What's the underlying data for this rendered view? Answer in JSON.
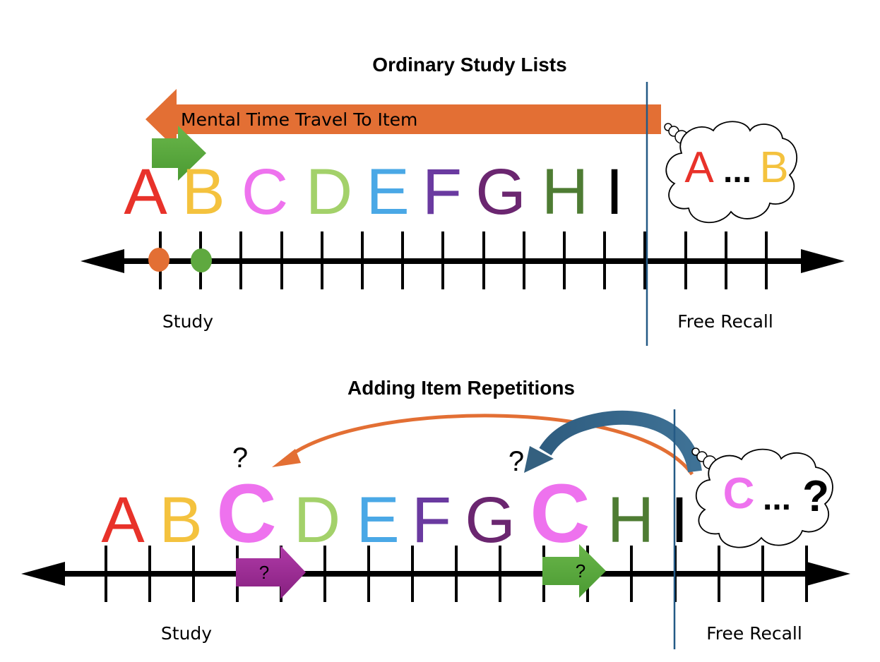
{
  "top": {
    "title": "Ordinary Study Lists",
    "travel_arrow_label": "Mental Time Travel To Item",
    "letters": [
      {
        "text": "A",
        "color": "#e8322a"
      },
      {
        "text": "B",
        "color": "#f4c23e"
      },
      {
        "text": "C",
        "color": "#ee72ee"
      },
      {
        "text": "D",
        "color": "#a3d16a"
      },
      {
        "text": "E",
        "color": "#4aa8e6"
      },
      {
        "text": "F",
        "color": "#6a3aa0"
      },
      {
        "text": "G",
        "color": "#6b2670"
      },
      {
        "text": "H",
        "color": "#4e7c33"
      },
      {
        "text": "I",
        "color": "#000000"
      }
    ],
    "thought": {
      "first": "A",
      "dots": "...",
      "second": "B"
    },
    "study_label": "Study",
    "recall_label": "Free Recall",
    "colors": {
      "travel_arrow": "#e36f34",
      "small_arrow": "#5fa93f",
      "marker_a": "#e36f34",
      "marker_b": "#5fa93f",
      "boundary": "#245a86"
    }
  },
  "bottom": {
    "title": "Adding Item Repetitions",
    "letters": [
      {
        "text": "A",
        "color": "#e8322a"
      },
      {
        "text": "B",
        "color": "#f4c23e"
      },
      {
        "text": "C",
        "color": "#ee72ee"
      },
      {
        "text": "D",
        "color": "#a3d16a"
      },
      {
        "text": "E",
        "color": "#4aa8e6"
      },
      {
        "text": "F",
        "color": "#6a3aa0"
      },
      {
        "text": "G",
        "color": "#6b2670"
      },
      {
        "text": "C",
        "color": "#ee72ee"
      },
      {
        "text": "H",
        "color": "#4e7c33"
      },
      {
        "text": "I",
        "color": "#000000"
      }
    ],
    "question_marks": [
      "?",
      "?"
    ],
    "arrow_labels": [
      "?",
      "?"
    ],
    "thought": {
      "first": "C",
      "dots": "...",
      "second": "?"
    },
    "study_label": "Study",
    "recall_label": "Free Recall",
    "colors": {
      "orange_curve": "#e36f34",
      "blue_curve": "#34607f",
      "purple_arrow": "#9b2f93",
      "green_arrow": "#5fa93f",
      "boundary": "#245a86"
    }
  }
}
